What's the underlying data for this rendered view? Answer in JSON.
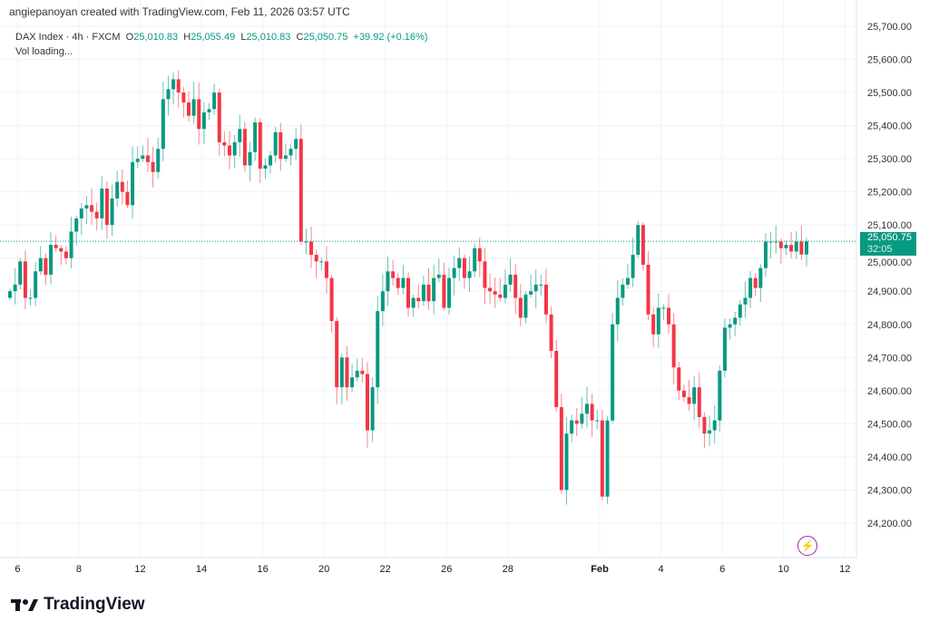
{
  "credit": "angiepanoyan created with TradingView.com, Feb 11, 2026 03:57 UTC",
  "legend": {
    "symbol": "DAX Index · 4h · FXCM",
    "o_label": "O",
    "o": "25,010.83",
    "h_label": "H",
    "h": "25,055.49",
    "l_label": "L",
    "l": "25,010.83",
    "c_label": "C",
    "c": "25,050.75",
    "change": "+39.92 (+0.16%)",
    "vol": "Vol loading..."
  },
  "last_price": {
    "price": "25,050.75",
    "countdown": "32:05"
  },
  "logo_text": "TradingView",
  "colors": {
    "up": "#089981",
    "down": "#f23645",
    "grid": "#f0f3fa",
    "accent": "#9c27b0"
  },
  "chart_data": {
    "type": "candlestick",
    "title": "DAX Index · 4h · FXCM",
    "ylim": [
      24100,
      25750
    ],
    "y_ticks": [
      "24,200.00",
      "24,300.00",
      "24,400.00",
      "24,500.00",
      "24,600.00",
      "24,700.00",
      "24,800.00",
      "24,900.00",
      "25,000.00",
      "25,100.00",
      "25,200.00",
      "25,300.00",
      "25,400.00",
      "25,500.00",
      "25,600.00",
      "25,700.00"
    ],
    "y_tick_values": [
      24200,
      24300,
      24400,
      24500,
      24600,
      24700,
      24800,
      24900,
      25000,
      25100,
      25200,
      25300,
      25400,
      25500,
      25600,
      25700
    ],
    "x_ticks": [
      "6",
      "8",
      "12",
      "14",
      "16",
      "20",
      "22",
      "26",
      "28",
      "Feb",
      "4",
      "6",
      "10",
      "12"
    ],
    "x_tick_index": [
      1.5,
      13.5,
      25.5,
      37.5,
      49.5,
      61.5,
      73.5,
      85.5,
      97.5,
      115.5,
      127.5,
      139.5,
      151.5,
      163.5
    ],
    "first_open": 24880,
    "close": [
      24900,
      24920,
      24990,
      24880,
      24880,
      24960,
      25000,
      24950,
      25040,
      25030,
      25020,
      25000,
      25080,
      25120,
      25150,
      25160,
      25140,
      25120,
      25210,
      25100,
      25180,
      25230,
      25200,
      25160,
      25290,
      25300,
      25310,
      25290,
      25260,
      25330,
      25480,
      25510,
      25540,
      25500,
      25470,
      25430,
      25480,
      25390,
      25440,
      25450,
      25500,
      25350,
      25340,
      25310,
      25350,
      25390,
      25280,
      25320,
      25410,
      25270,
      25280,
      25310,
      25380,
      25300,
      25310,
      25330,
      25360,
      25050,
      25050,
      25010,
      24990,
      24990,
      24940,
      24810,
      24610,
      24700,
      24610,
      24640,
      24660,
      24650,
      24480,
      24610,
      24840,
      24900,
      24960,
      24940,
      24910,
      24940,
      24850,
      24880,
      24870,
      24920,
      24870,
      24940,
      24950,
      24850,
      24940,
      24970,
      25000,
      24940,
      24960,
      25030,
      24990,
      24910,
      24900,
      24890,
      24880,
      24920,
      24950,
      24880,
      24820,
      24890,
      24900,
      24920,
      24920,
      24830,
      24720,
      24550,
      24300,
      24470,
      24510,
      24500,
      24530,
      24560,
      24510,
      24510,
      24280,
      24510,
      24800,
      24880,
      24920,
      24940,
      25010,
      25100,
      24980,
      24830,
      24770,
      24850,
      24850,
      24800,
      24670,
      24600,
      24580,
      24560,
      24610,
      24520,
      24470,
      24480,
      24510,
      24660,
      24790,
      24800,
      24820,
      24860,
      24880,
      24940,
      24910,
      24970,
      25050,
      25050,
      25050,
      25030,
      25040,
      25020,
      25050,
      25010.83,
      25050.75
    ],
    "last": 25050.75
  }
}
